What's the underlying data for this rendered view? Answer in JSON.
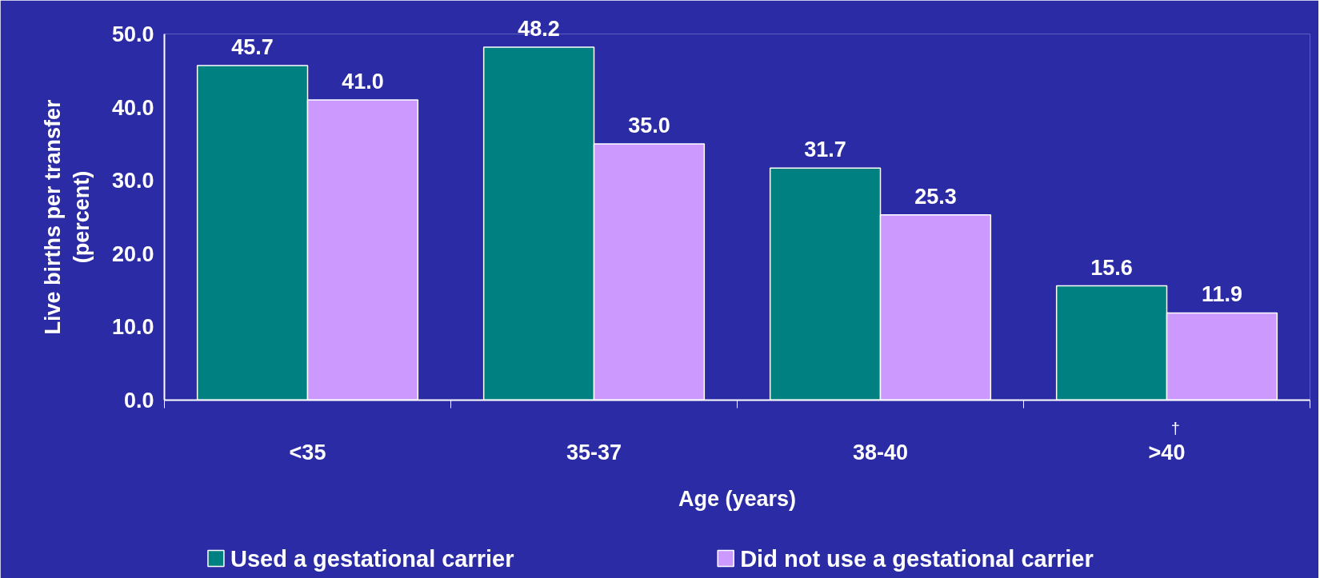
{
  "chart_data": {
    "type": "bar",
    "xlabel": "Age (years)",
    "ylabel": "Live births per transfer\n(percent)",
    "categories": [
      "<35",
      "35-37",
      "38-40",
      ">40"
    ],
    "series": [
      {
        "name": "Used a gestational carrier",
        "color": "#008080",
        "values": [
          45.7,
          48.2,
          31.7,
          15.6
        ],
        "value_labels": [
          "45.7",
          "48.2",
          "31.7",
          "15.6"
        ]
      },
      {
        "name": "Did not use a gestational carrier",
        "color": "#cc99ff",
        "values": [
          41.0,
          35.0,
          25.3,
          11.9
        ],
        "value_labels": [
          "41.0",
          "35.0",
          "25.3",
          "11.9"
        ]
      }
    ],
    "ylim": [
      0,
      50
    ],
    "yticks": [
      {
        "value": 0,
        "label": "0.0"
      },
      {
        "value": 10,
        "label": "10.0"
      },
      {
        "value": 20,
        "label": "20.0"
      },
      {
        "value": 30,
        "label": "30.0"
      },
      {
        "value": 40,
        "label": "40.0"
      },
      {
        "value": 50,
        "label": "50.0"
      }
    ],
    "annotations": [
      "†"
    ],
    "grid": false,
    "legend": "bottom"
  }
}
